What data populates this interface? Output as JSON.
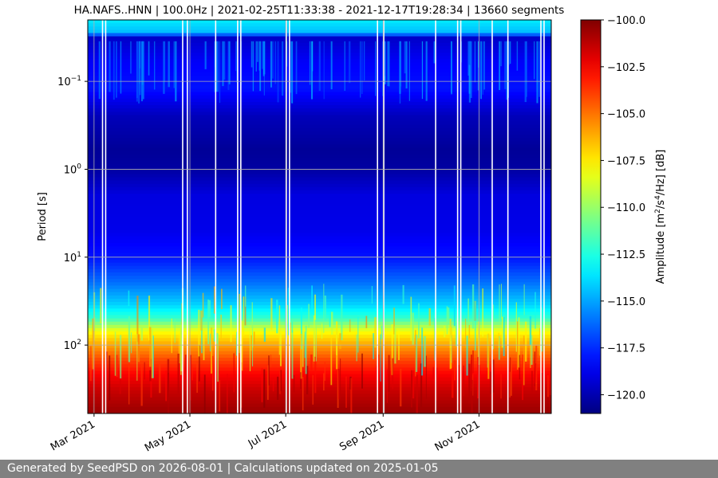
{
  "chart_data": {
    "type": "heatmap",
    "title": "HA.NAFS..HNN | 100.0Hz | 2021-02-25T11:33:38 - 2021-12-17T19:28:34 | 13660 segments",
    "ylabel": "Period [s]",
    "colorbar_label_prefix": "Amplitude [m",
    "colorbar_label_mid": "/s",
    "colorbar_label_suffix": "/Hz] [dB]",
    "colorbar_label_sup1": "2",
    "colorbar_label_sup2": "4",
    "y_scale": "log",
    "y_inverted": true,
    "ylim": [
      0.02,
      600
    ],
    "xlim": [
      "2021-02-25",
      "2021-12-17"
    ],
    "colormap": "jet",
    "color_range": [
      -121,
      -100
    ],
    "grid": true,
    "x_ticks": [
      {
        "date": "2021-03-01",
        "label": "Mar 2021"
      },
      {
        "date": "2021-05-01",
        "label": "May 2021"
      },
      {
        "date": "2021-07-01",
        "label": "Jul 2021"
      },
      {
        "date": "2021-09-01",
        "label": "Sep 2021"
      },
      {
        "date": "2021-11-01",
        "label": "Nov 2021"
      }
    ],
    "y_ticks": [
      {
        "value": 0.1,
        "base": "10",
        "exp": "−1"
      },
      {
        "value": 1,
        "base": "10",
        "exp": "0"
      },
      {
        "value": 10,
        "base": "10",
        "exp": "1"
      },
      {
        "value": 100,
        "base": "10",
        "exp": "2"
      }
    ],
    "colorbar_ticks": [
      {
        "value": -100.0,
        "label": "−100.0"
      },
      {
        "value": -102.5,
        "label": "−102.5"
      },
      {
        "value": -105.0,
        "label": "−105.0"
      },
      {
        "value": -107.5,
        "label": "−107.5"
      },
      {
        "value": -110.0,
        "label": "−110.0"
      },
      {
        "value": -112.5,
        "label": "−112.5"
      },
      {
        "value": -115.0,
        "label": "−115.0"
      },
      {
        "value": -117.5,
        "label": "−117.5"
      },
      {
        "value": -120.0,
        "label": "−120.0"
      }
    ],
    "period_profile": [
      {
        "period": 0.02,
        "db": -113.5
      },
      {
        "period": 0.028,
        "db": -114.5
      },
      {
        "period": 0.032,
        "db": -119.5
      },
      {
        "period": 0.06,
        "db": -118.5
      },
      {
        "period": 0.12,
        "db": -118.0
      },
      {
        "period": 0.25,
        "db": -119.8
      },
      {
        "period": 0.6,
        "db": -120.5
      },
      {
        "period": 1.0,
        "db": -120.3
      },
      {
        "period": 2.0,
        "db": -119.0
      },
      {
        "period": 5.0,
        "db": -118.8
      },
      {
        "period": 10,
        "db": -118.0
      },
      {
        "period": 20,
        "db": -116.0
      },
      {
        "period": 35,
        "db": -114.0
      },
      {
        "period": 50,
        "db": -112.0
      },
      {
        "period": 70,
        "db": -108.0
      },
      {
        "period": 100,
        "db": -106.0
      },
      {
        "period": 150,
        "db": -104.0
      },
      {
        "period": 220,
        "db": -102.5
      },
      {
        "period": 330,
        "db": -101.5
      },
      {
        "period": 600,
        "db": -100.5
      }
    ],
    "data_gaps": [
      "2021-03-06",
      "2021-03-08",
      "2021-04-26",
      "2021-04-29",
      "2021-05-17",
      "2021-05-31",
      "2021-06-02",
      "2021-07-01",
      "2021-07-03",
      "2021-08-28",
      "2021-09-01",
      "2021-10-04",
      "2021-10-18",
      "2021-10-20",
      "2021-11-09",
      "2021-11-19",
      "2021-12-10",
      "2021-12-12"
    ]
  },
  "footer": {
    "text": "Generated by SeedPSD on 2026-08-01 | Calculations updated on 2025-01-05"
  }
}
